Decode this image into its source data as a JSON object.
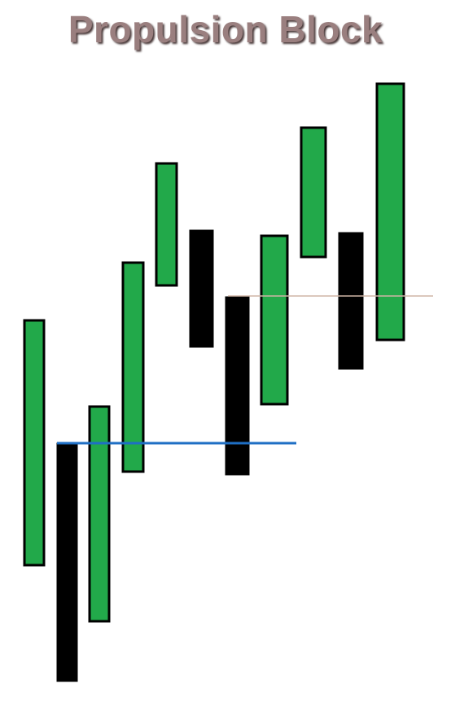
{
  "title": "Propulsion Block",
  "colors": {
    "bullish": "#22a94a",
    "bearish": "#000000",
    "outline": "#000000",
    "level_line": "#1f6fc4",
    "upper_line": "#cfb6a6"
  },
  "candles": [
    {
      "direction": "up"
    },
    {
      "direction": "down"
    },
    {
      "direction": "up"
    },
    {
      "direction": "up"
    },
    {
      "direction": "up"
    },
    {
      "direction": "down"
    },
    {
      "direction": "down"
    },
    {
      "direction": "up"
    },
    {
      "direction": "up"
    },
    {
      "direction": "down"
    },
    {
      "direction": "up"
    }
  ]
}
